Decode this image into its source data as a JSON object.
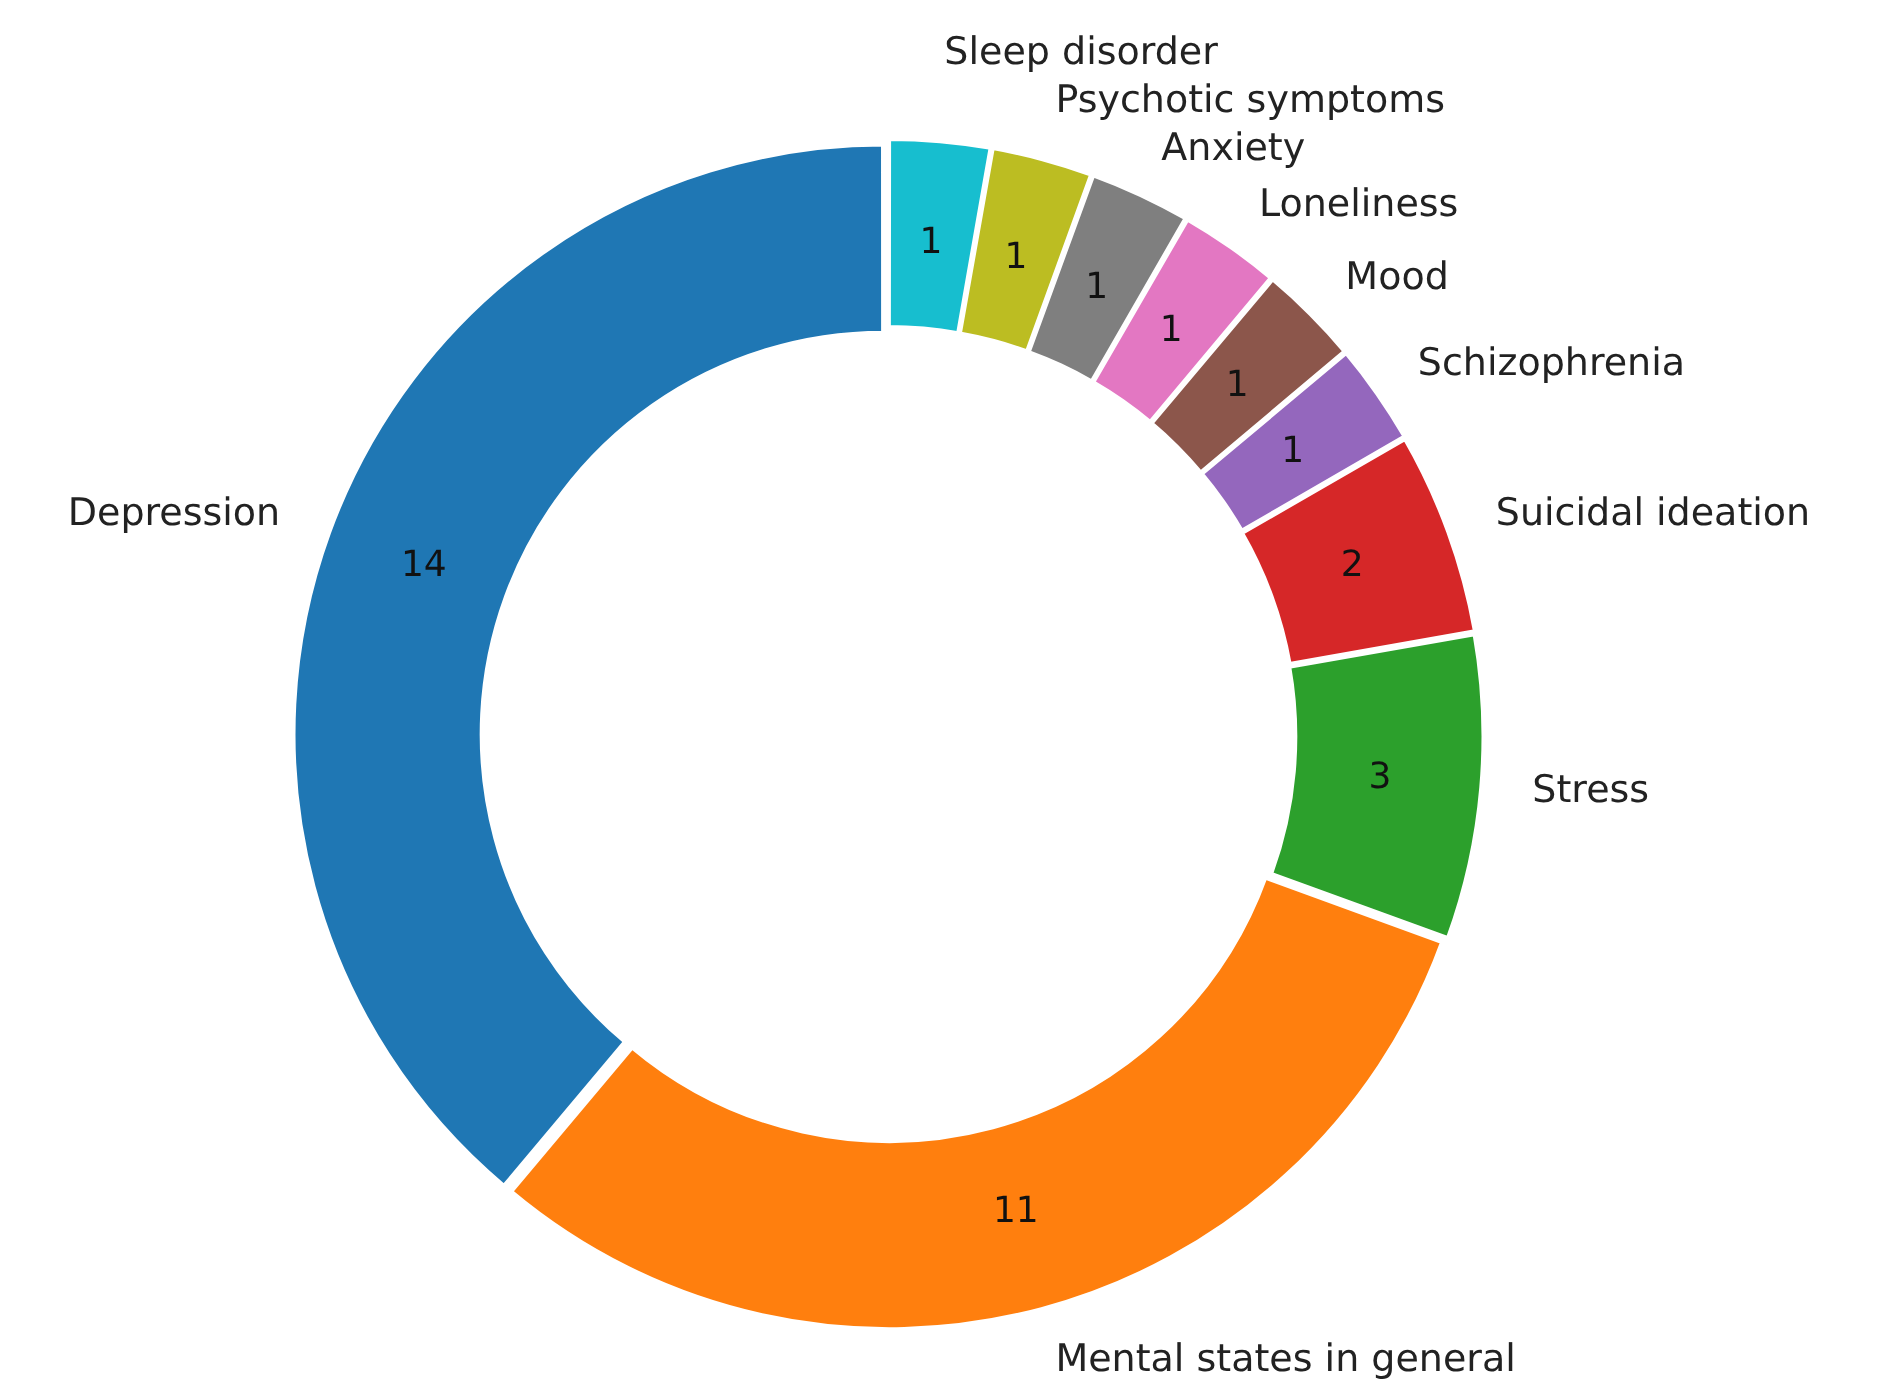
{
  "chart_data": {
    "type": "donut",
    "categories": [
      "Depression",
      "Mental states in general",
      "Stress",
      "Suicidal ideation",
      "Schizophrenia",
      "Mood",
      "Loneliness",
      "Anxiety",
      "Psychotic symptoms",
      "Sleep disorder"
    ],
    "values": [
      14,
      11,
      3,
      2,
      1,
      1,
      1,
      1,
      1,
      1
    ],
    "colors": [
      "#1f77b4",
      "#ff7f0e",
      "#2ca02c",
      "#d62728",
      "#9467bd",
      "#8c564b",
      "#e377c2",
      "#7f7f7f",
      "#bcbd22",
      "#17becf"
    ],
    "data_labels": true,
    "legend": false
  }
}
